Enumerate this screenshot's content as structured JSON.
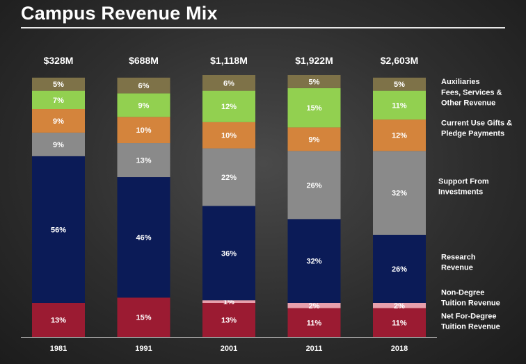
{
  "title": "Campus Revenue Mix",
  "chart_data": {
    "type": "bar",
    "stacked": true,
    "normalized": true,
    "title": "Campus Revenue Mix",
    "categories": [
      "1981",
      "1991",
      "2001",
      "2011",
      "2018"
    ],
    "totals": [
      "$328M",
      "$688M",
      "$1,118M",
      "$1,922M",
      "$2,603M"
    ],
    "series": [
      {
        "name": "Net For-Degree Tuition Revenue",
        "color": "#9b1b32",
        "values": [
          13,
          15,
          13,
          11,
          11
        ],
        "labels": [
          "13%",
          "15%",
          "13%",
          "11%",
          "11%"
        ]
      },
      {
        "name": "Non-Degree Tuition Revenue",
        "color": "#e8a0ad",
        "values": [
          0,
          0,
          1,
          2,
          2
        ],
        "labels": [
          "",
          "",
          "1%",
          "2%",
          "2%"
        ]
      },
      {
        "name": "Research Revenue",
        "color": "#0b1b57",
        "values": [
          56,
          46,
          36,
          32,
          26
        ],
        "labels": [
          "56%",
          "46%",
          "36%",
          "32%",
          "26%"
        ]
      },
      {
        "name": "Support From Investments",
        "color": "#8a8a8a",
        "values": [
          9,
          13,
          22,
          26,
          32
        ],
        "labels": [
          "9%",
          "13%",
          "22%",
          "26%",
          "32%"
        ]
      },
      {
        "name": "Current Use Gifts & Pledge Payments",
        "color": "#d4843c",
        "values": [
          9,
          10,
          10,
          9,
          12
        ],
        "labels": [
          "9%",
          "10%",
          "10%",
          "9%",
          "12%"
        ]
      },
      {
        "name": "Fees, Services & Other Revenue",
        "color": "#92d050",
        "values": [
          7,
          9,
          12,
          15,
          11
        ],
        "labels": [
          "7%",
          "9%",
          "12%",
          "15%",
          "11%"
        ]
      },
      {
        "name": "Auxiliaries",
        "color": "#7e7248",
        "values": [
          5,
          6,
          6,
          5,
          5
        ],
        "labels": [
          "5%",
          "6%",
          "6%",
          "5%",
          "5%"
        ]
      }
    ],
    "legend": [
      {
        "lines": [
          "Auxiliaries"
        ]
      },
      {
        "lines": [
          "Fees, Services &",
          "Other Revenue"
        ]
      },
      {
        "lines": [
          "Current Use Gifts &",
          "Pledge Payments"
        ]
      },
      {
        "lines": [
          "Support From",
          "Investments"
        ]
      },
      {
        "lines": [
          "Research",
          "Revenue"
        ]
      },
      {
        "lines": [
          "Non-Degree",
          "Tuition Revenue"
        ]
      },
      {
        "lines": [
          "Net For-Degree",
          "Tuition Revenue"
        ]
      }
    ],
    "legend_placement": "right",
    "ylim": [
      0,
      100
    ]
  }
}
